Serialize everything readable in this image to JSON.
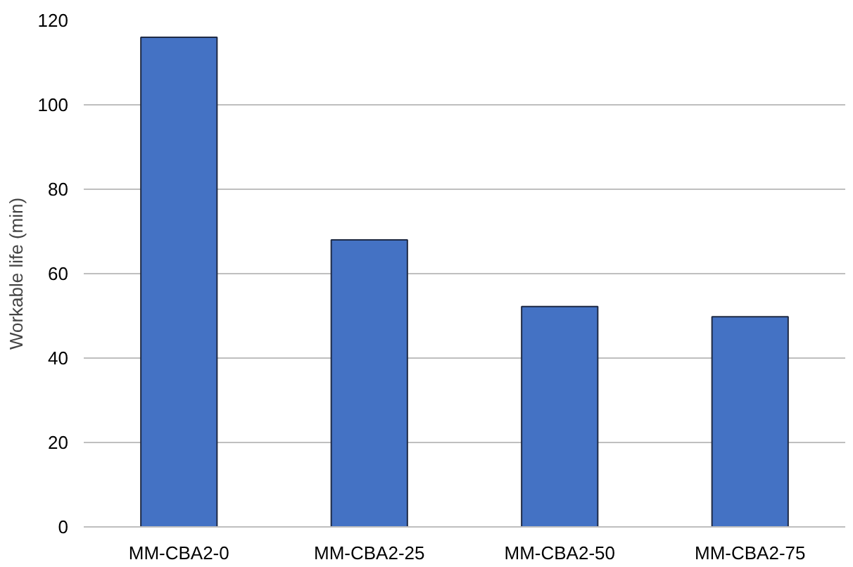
{
  "chart_data": {
    "type": "bar",
    "ylabel": "Workable life (min)",
    "categories": [
      "MM-CBA2-0",
      "MM-CBA2-25",
      "MM-CBA2-50",
      "MM-CBA2-75"
    ],
    "values": [
      116,
      68,
      52.2,
      49.8
    ],
    "color": "#4472c4",
    "ylim": [
      0,
      120
    ],
    "yticks": [
      0,
      20,
      40,
      60,
      80,
      100,
      120
    ],
    "grid": "y"
  }
}
